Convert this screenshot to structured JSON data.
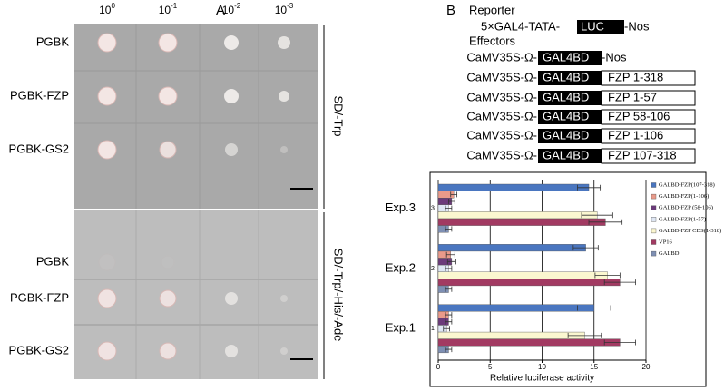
{
  "panel_a": {
    "letter": "A",
    "dilutions": [
      {
        "base": "10",
        "exponent": "0"
      },
      {
        "base": "10",
        "exponent": "-1"
      },
      {
        "base": "10",
        "exponent": "-2"
      },
      {
        "base": "10",
        "exponent": "-3"
      }
    ],
    "plates": [
      {
        "medium": "SD/-Trp",
        "rows": [
          "PGBK",
          "PGBK-FZP",
          "PGBK-GS2"
        ]
      },
      {
        "medium": "SD/-Trp/-His/-Ade",
        "rows": [
          "PGBK",
          "PGBK-FZP",
          "PGBK-GS2"
        ]
      }
    ]
  },
  "panel_b": {
    "letter": "B",
    "reporter_heading": "Reporter",
    "reporter": {
      "prefix": "5×GAL4-TATA-",
      "gene": "LUC",
      "terminator": "-Nos"
    },
    "effectors_heading": "Effectors",
    "effectors": [
      {
        "promoter": "CaMV35S-Ω-",
        "domain": "GAL4BD",
        "terminator": "-Nos"
      },
      {
        "promoter": "CaMV35S-Ω-",
        "domain": "GAL4BD",
        "fusion": "FZP 1-318"
      },
      {
        "promoter": "CaMV35S-Ω-",
        "domain": "GAL4BD",
        "fusion": "FZP 1-57"
      },
      {
        "promoter": "CaMV35S-Ω-",
        "domain": "GAL4BD",
        "fusion": "FZP 58-106"
      },
      {
        "promoter": "CaMV35S-Ω-",
        "domain": "GAL4BD",
        "fusion": "FZP 1-106"
      },
      {
        "promoter": "CaMV35S-Ω-",
        "domain": "GAL4BD",
        "fusion": "FZP 107-318"
      }
    ]
  },
  "chart_data": {
    "type": "hbar",
    "x_label": "Relative luciferase activity",
    "categories": [
      "Exp.3",
      "Exp.2",
      "Exp.1"
    ],
    "group_numbers": [
      "3",
      "2",
      "1"
    ],
    "xlim": [
      0,
      20
    ],
    "xticks": [
      0,
      5,
      10,
      15,
      20
    ],
    "grid": true,
    "series": [
      {
        "name": "GALBD-FZP(107-318)",
        "color": "#4a76c0",
        "values": [
          14.5,
          14.2,
          15
        ],
        "errors": [
          1.1,
          1.2,
          1.6
        ]
      },
      {
        "name": "GALBD-FZP(1-106)",
        "color": "#e99a8a",
        "values": [
          1.5,
          1.2,
          1.0
        ],
        "errors": [
          0.3,
          0.4,
          0.3
        ]
      },
      {
        "name": "GALBD-FZP (58-106)",
        "color": "#6b3a7a",
        "values": [
          1.3,
          1.3,
          1.0
        ],
        "errors": [
          0.3,
          0.4,
          0.3
        ]
      },
      {
        "name": "GALBD-FZP(1-57)",
        "color": "#dfe7f4",
        "values": [
          1.0,
          1.0,
          0.8
        ],
        "errors": [
          0.3,
          0.3,
          0.3
        ]
      },
      {
        "name": "GALBD-FZP CDS(1-318)",
        "color": "#fbf7d0",
        "values": [
          15.3,
          16.3,
          14.1
        ],
        "errors": [
          1.5,
          1.2,
          1.6
        ]
      },
      {
        "name": "VP16",
        "color": "#a23a62",
        "values": [
          16.1,
          17.5,
          17.5
        ],
        "errors": [
          1.6,
          1.5,
          1.5
        ]
      },
      {
        "name": "GALBD",
        "color": "#7e8fb3",
        "values": [
          1.0,
          1.0,
          1.0
        ],
        "errors": [
          0.3,
          0.3,
          0.3
        ]
      }
    ]
  }
}
